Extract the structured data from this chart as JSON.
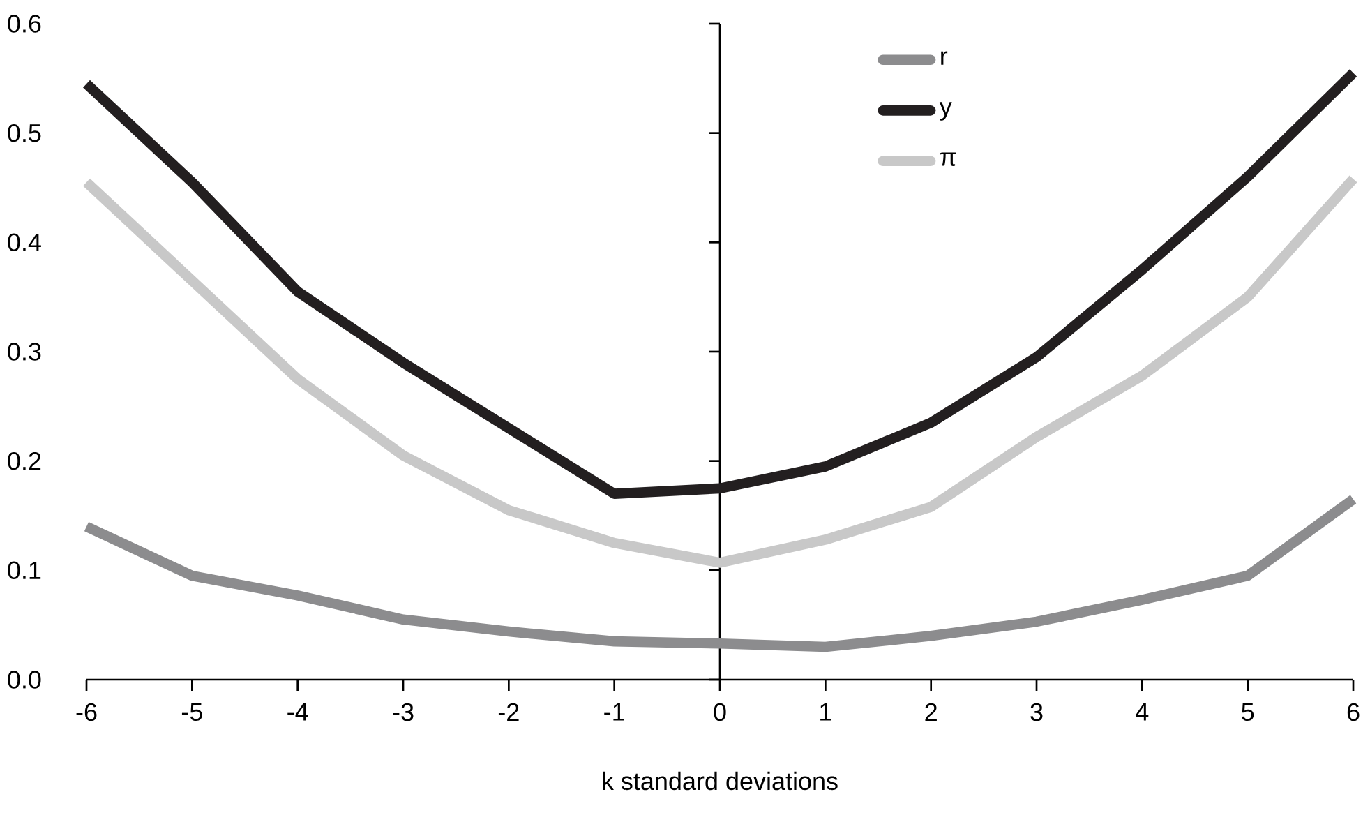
{
  "chart_data": {
    "type": "line",
    "xlabel": "k standard deviations",
    "x": [
      -6,
      -5,
      -4,
      -3,
      -2,
      -1,
      0,
      1,
      2,
      3,
      4,
      5,
      6
    ],
    "xlim": [
      -6,
      6
    ],
    "xticks": [
      -6,
      -5,
      -4,
      -3,
      -2,
      -1,
      0,
      1,
      2,
      3,
      4,
      5,
      6
    ],
    "ylim": [
      0,
      0.6
    ],
    "yticks": [
      {
        "value": 0,
        "label": "0.0"
      },
      {
        "value": 0.1,
        "label": "0.1"
      },
      {
        "value": 0.2,
        "label": "0.2"
      },
      {
        "value": 0.3,
        "label": "0.3"
      },
      {
        "value": 0.4,
        "label": "0.4"
      },
      {
        "value": 0.5,
        "label": "0.5"
      },
      {
        "value": 0.6,
        "label": "0.6"
      }
    ],
    "legend": "top right",
    "series": [
      {
        "name": "r",
        "color": "#8c8c8e",
        "values": [
          0.14,
          0.095,
          0.077,
          0.055,
          0.044,
          0.035,
          0.033,
          0.03,
          0.04,
          0.053,
          0.073,
          0.095,
          0.165
        ]
      },
      {
        "name": "y",
        "color": "#231f20",
        "values": [
          0.545,
          0.455,
          0.355,
          0.29,
          0.23,
          0.17,
          0.175,
          0.195,
          0.235,
          0.295,
          0.375,
          0.46,
          0.555
        ]
      },
      {
        "name": "π",
        "color": "#c8c8c8",
        "values": [
          0.455,
          0.365,
          0.275,
          0.205,
          0.155,
          0.125,
          0.107,
          0.128,
          0.158,
          0.222,
          0.278,
          0.35,
          0.458
        ]
      }
    ]
  }
}
